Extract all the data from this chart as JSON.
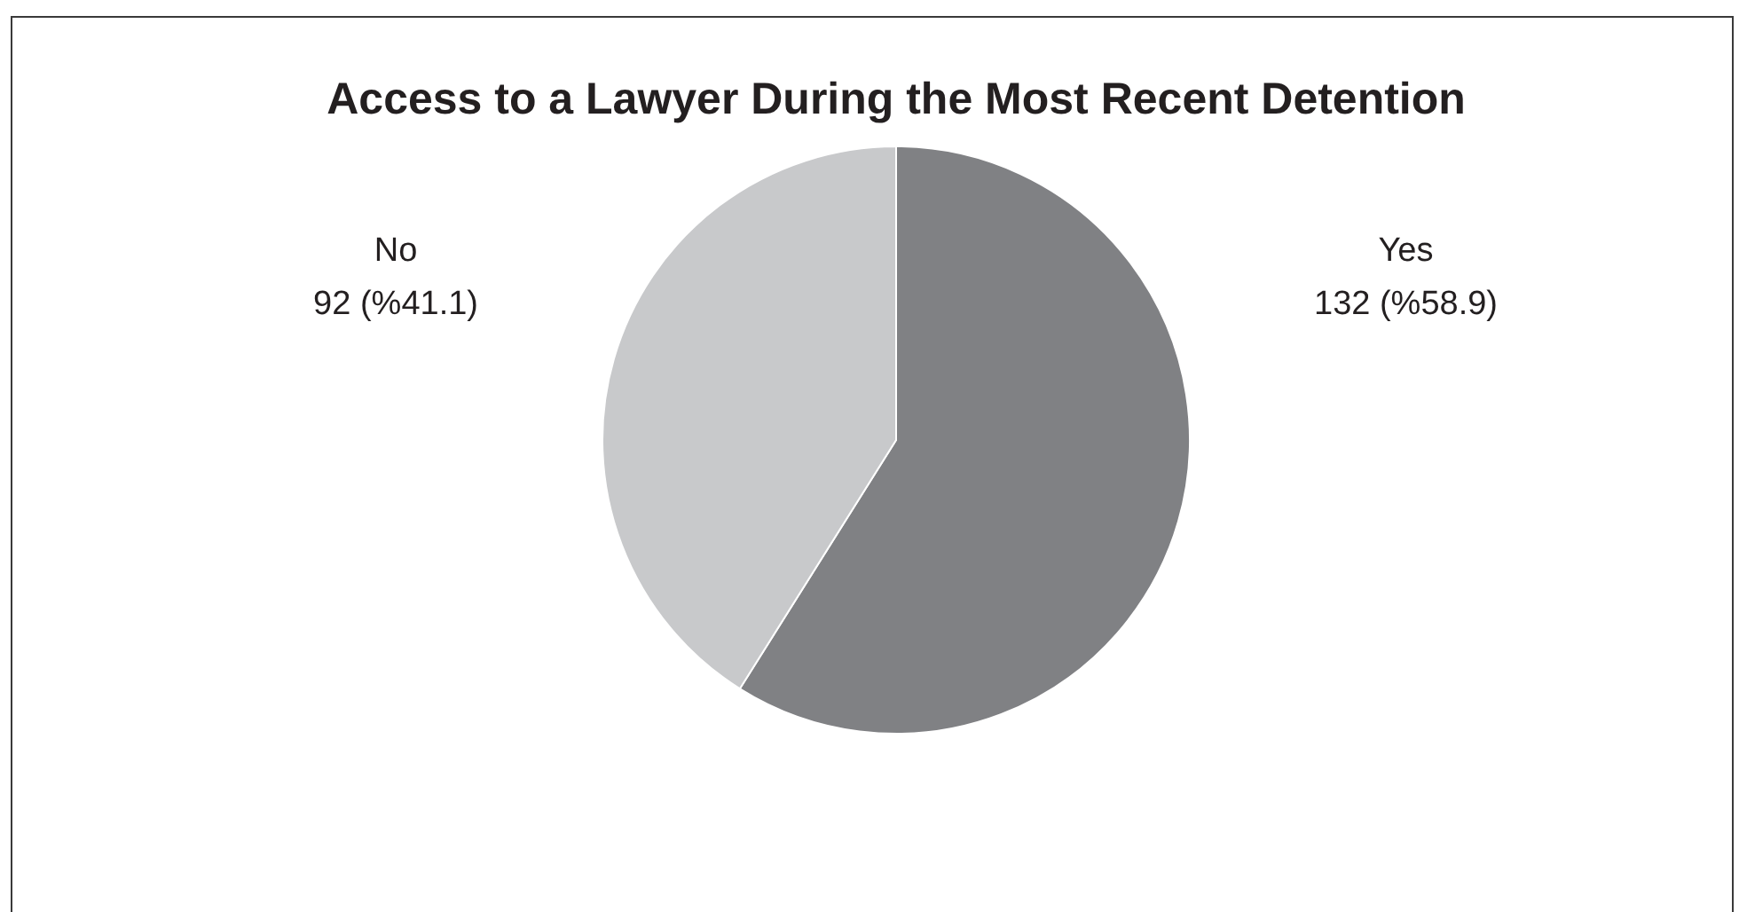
{
  "chart_data": {
    "type": "pie",
    "title": "Access to a Lawyer During the Most Recent Detention",
    "categories": [
      "Yes",
      "No"
    ],
    "values": [
      132,
      92
    ],
    "colors": [
      "#808184",
      "#c8c9cb"
    ],
    "value_labels": [
      "132 (%58.9)",
      "92 (%41.1)"
    ]
  }
}
